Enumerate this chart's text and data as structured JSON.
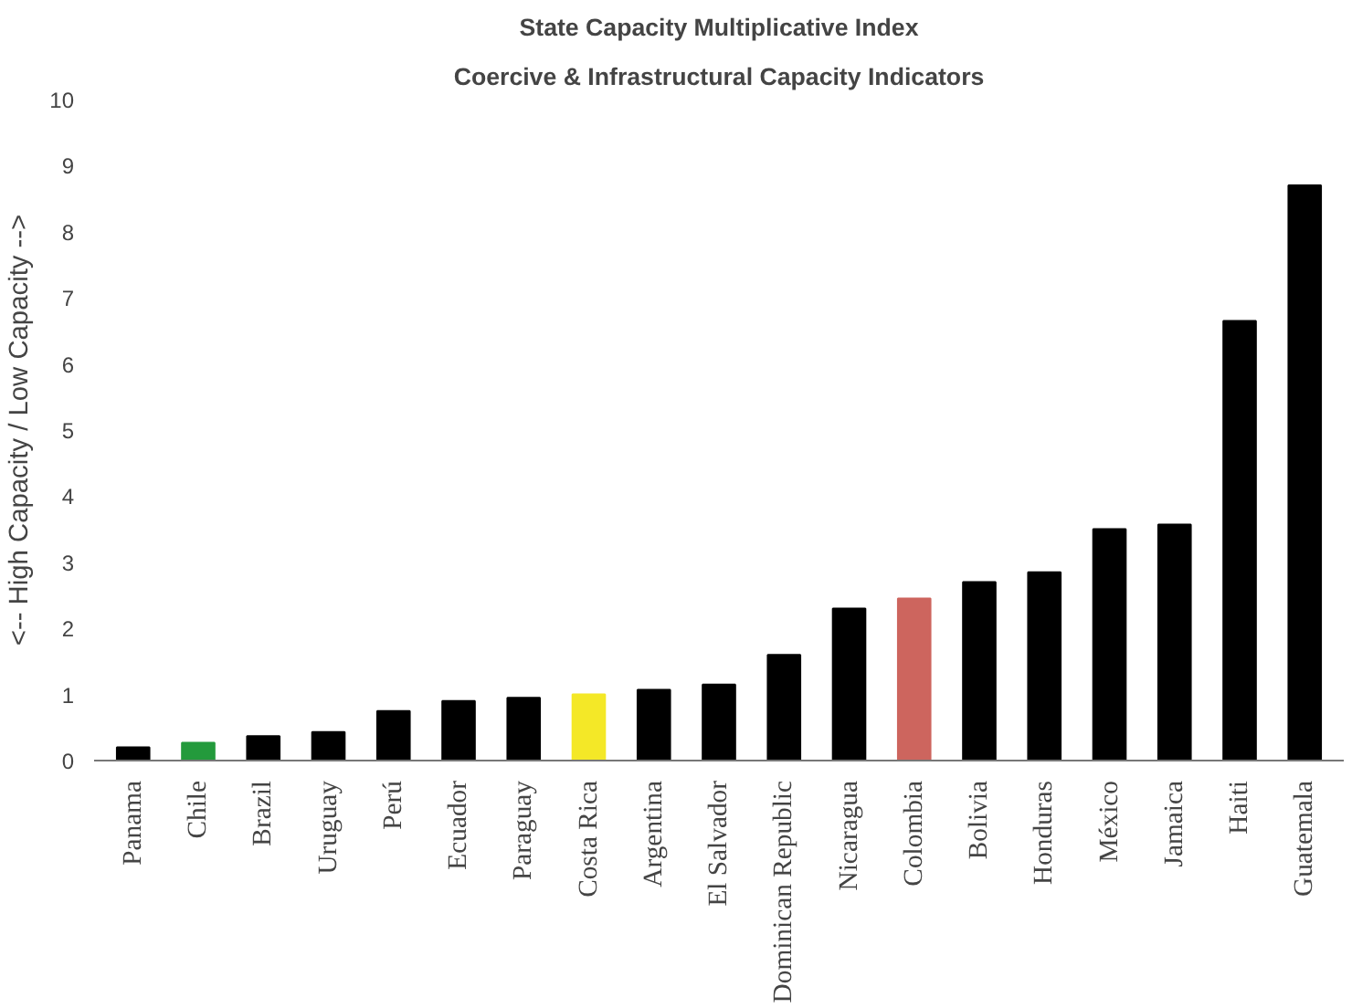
{
  "chart_data": {
    "type": "bar",
    "title": "State Capacity Multiplicative Index",
    "subtitle": "Coercive & Infrastructural Capacity Indicators",
    "ylabel": "<-- High Capacity / Low Capacity -->",
    "categories": [
      "Panama",
      "Chile",
      "Brazil",
      "Uruguay",
      "Perú",
      "Ecuador",
      "Paraguay",
      "Costa Rica",
      "Argentina",
      "El Salvador",
      "Dominican Republic",
      "Nicaragua",
      "Colombia",
      "Bolivia",
      "Honduras",
      "México",
      "Jamaica",
      "Haiti",
      "Guatemala"
    ],
    "values": [
      0.2,
      0.27,
      0.37,
      0.43,
      0.75,
      0.9,
      0.95,
      1.0,
      1.07,
      1.15,
      1.6,
      2.3,
      2.45,
      2.7,
      2.85,
      3.5,
      3.57,
      6.65,
      8.7
    ],
    "colors": [
      "#000000",
      "#239a3c",
      "#000000",
      "#000000",
      "#000000",
      "#000000",
      "#000000",
      "#f4e827",
      "#000000",
      "#000000",
      "#000000",
      "#000000",
      "#cd655e",
      "#000000",
      "#000000",
      "#000000",
      "#000000",
      "#000000",
      "#000000"
    ],
    "ylim": [
      0,
      10
    ],
    "yticks": [
      0,
      1,
      2,
      3,
      4,
      5,
      6,
      7,
      8,
      9,
      10
    ],
    "grid": false
  }
}
